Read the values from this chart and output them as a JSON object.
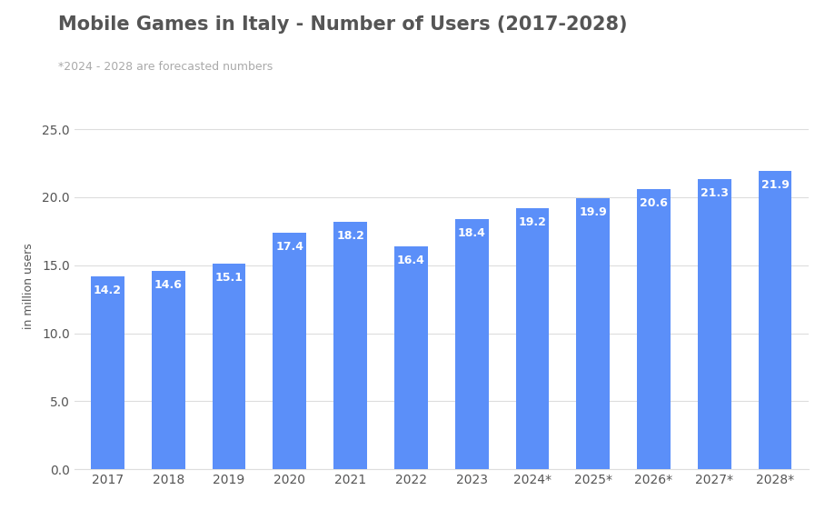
{
  "title": "Mobile Games in Italy - Number of Users (2017-2028)",
  "subtitle": "*2024 - 2028 are forecasted numbers",
  "ylabel": "in million users",
  "categories": [
    "2017",
    "2018",
    "2019",
    "2020",
    "2021",
    "2022",
    "2023",
    "2024*",
    "2025*",
    "2026*",
    "2027*",
    "2028*"
  ],
  "values": [
    14.2,
    14.6,
    15.1,
    17.4,
    18.2,
    16.4,
    18.4,
    19.2,
    19.9,
    20.6,
    21.3,
    21.9
  ],
  "bar_color": "#5B8FF9",
  "label_color": "#ffffff",
  "title_color": "#555555",
  "subtitle_color": "#aaaaaa",
  "grid_color": "#dddddd",
  "tick_color": "#555555",
  "background_color": "#ffffff",
  "ylim": [
    0,
    27
  ],
  "yticks": [
    0.0,
    5.0,
    10.0,
    15.0,
    20.0,
    25.0
  ],
  "title_fontsize": 15,
  "subtitle_fontsize": 9,
  "label_fontsize": 9,
  "tick_fontsize": 10,
  "ylabel_fontsize": 9,
  "bar_width": 0.55
}
